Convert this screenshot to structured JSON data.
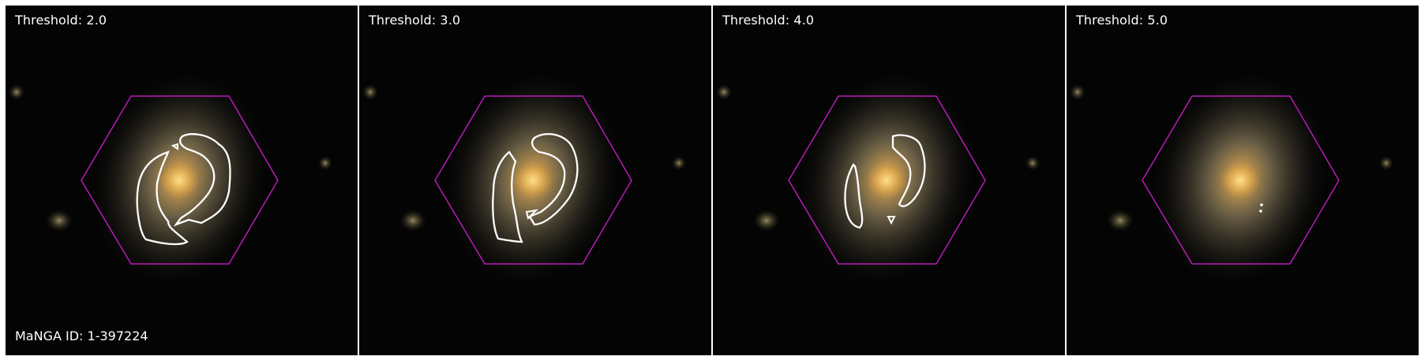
{
  "panels": [
    {
      "threshold_label": "Threshold: 2.0"
    },
    {
      "threshold_label": "Threshold: 3.0"
    },
    {
      "threshold_label": "Threshold: 4.0"
    },
    {
      "threshold_label": "Threshold: 5.0"
    }
  ],
  "galaxy_id_label": "MaNGA ID: 1-397224",
  "colors": {
    "hexagon": "#b81bb8",
    "contour": "#ffffff",
    "background": "#040404",
    "galaxy_core": "#f5c060"
  }
}
